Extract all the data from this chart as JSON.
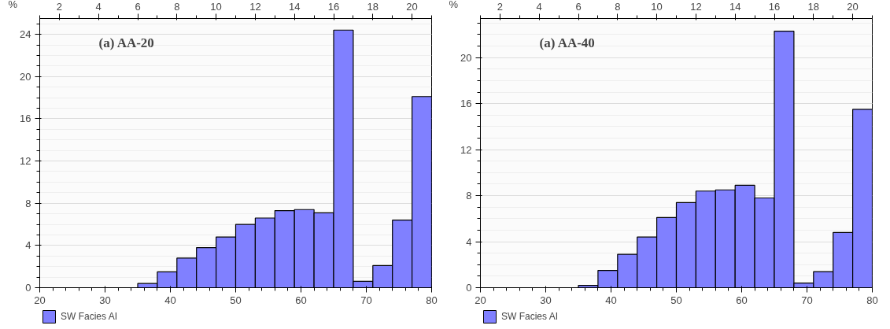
{
  "chart_data": [
    {
      "type": "histogram",
      "title": "(a) AA-20",
      "ylabel": "%",
      "bins": [
        20,
        23,
        26,
        29,
        32,
        35,
        38,
        41,
        44,
        47,
        50,
        53,
        56,
        59,
        62,
        65,
        68,
        71,
        74,
        77,
        80
      ],
      "series": [
        {
          "name": "SW Facies AI",
          "color": "#8080ff",
          "values": [
            0,
            0,
            0,
            0,
            0,
            0.4,
            1.5,
            2.8,
            3.8,
            4.8,
            6.0,
            6.6,
            7.3,
            7.4,
            7.1,
            24.4,
            0.6,
            2.1,
            6.4,
            18.1
          ]
        }
      ],
      "xlim": [
        20,
        80
      ],
      "xticks": [
        20,
        30,
        40,
        50,
        60,
        70,
        80
      ],
      "x2lim": [
        1,
        21
      ],
      "x2ticks": [
        2,
        4,
        6,
        8,
        10,
        12,
        14,
        16,
        18,
        20
      ],
      "ylim": [
        0,
        25.5
      ],
      "yticks": [
        0,
        4,
        8,
        12,
        16,
        20,
        24
      ],
      "grid": "y",
      "legend": "bottom"
    },
    {
      "type": "histogram",
      "title": "(a) AA-40",
      "ylabel": "%",
      "bins": [
        20,
        23,
        26,
        29,
        32,
        35,
        38,
        41,
        44,
        47,
        50,
        53,
        56,
        59,
        62,
        65,
        68,
        71,
        74,
        77,
        80
      ],
      "series": [
        {
          "name": "SW Facies AI",
          "color": "#8080ff",
          "values": [
            0,
            0,
            0,
            0,
            0,
            0.2,
            1.5,
            2.9,
            4.4,
            6.1,
            7.4,
            8.4,
            8.5,
            8.9,
            7.8,
            22.3,
            0.4,
            1.4,
            4.8,
            15.5
          ]
        }
      ],
      "xlim": [
        20,
        80
      ],
      "xticks": [
        20,
        30,
        40,
        50,
        60,
        70,
        80
      ],
      "x2lim": [
        1,
        21
      ],
      "x2ticks": [
        2,
        4,
        6,
        8,
        10,
        12,
        14,
        16,
        18,
        20
      ],
      "ylim": [
        0,
        23.4
      ],
      "yticks": [
        0,
        4,
        8,
        12,
        16,
        20
      ],
      "grid": "y",
      "legend": "bottom"
    }
  ]
}
